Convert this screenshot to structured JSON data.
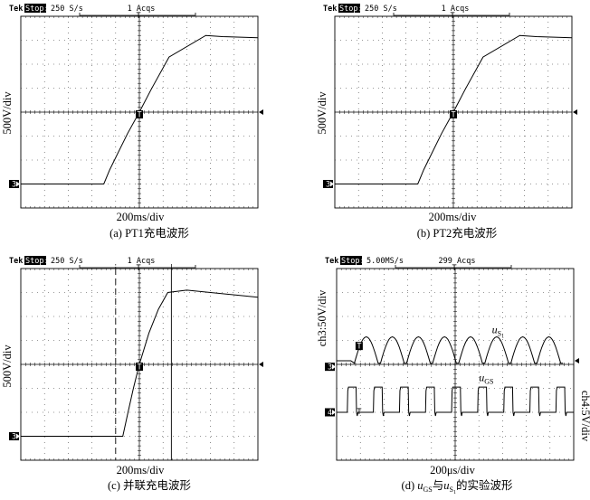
{
  "chart_data": [
    {
      "type": "line",
      "header": {
        "brand": "Tek",
        "status": "Stop:",
        "rate": "250 S/s",
        "acqs": "1 Acqs"
      },
      "xlabel": "200ms/div",
      "ylabel": "500V/div",
      "channel_marker": "3",
      "caption": "(a)  PT1充电波形",
      "x": [
        0,
        3.5,
        3.75,
        4.5,
        5,
        5.5,
        6.25,
        7.8,
        8.5,
        10
      ],
      "y": [
        -3,
        -3,
        -2.4,
        -0.9,
        0,
        0.95,
        2.3,
        3.2,
        3.15,
        3.1
      ],
      "series_labels": []
    },
    {
      "type": "line",
      "header": {
        "brand": "Tek",
        "status": "Stop:",
        "rate": "250 S/s",
        "acqs": "1 Acqs"
      },
      "xlabel": "200ms/div",
      "ylabel": "500V/div",
      "channel_marker": "3",
      "caption": "(b)  PT2充电波形",
      "x": [
        0,
        3.5,
        3.75,
        4.5,
        5,
        5.5,
        6.25,
        7.8,
        8.5,
        10
      ],
      "y": [
        -3,
        -3,
        -2.4,
        -0.9,
        0,
        0.95,
        2.3,
        3.2,
        3.15,
        3.1
      ],
      "series_labels": []
    },
    {
      "type": "line",
      "header": {
        "brand": "Tek",
        "status": "Stop:",
        "rate": "250 S/s",
        "acqs": "1 Acqs"
      },
      "xlabel": "200ms/div",
      "ylabel": "500V/div",
      "channel_marker": "3",
      "caption": "(c)  并联充电波形",
      "x": [
        0,
        4.3,
        4.5,
        4.75,
        5,
        5.4,
        5.8,
        6.2,
        7.0,
        10
      ],
      "y": [
        -3,
        -3,
        -2.1,
        -1.0,
        0,
        1.3,
        2.3,
        3.0,
        3.1,
        2.8
      ],
      "cursors_x": [
        4.0,
        6.35
      ],
      "series_labels": []
    },
    {
      "type": "line",
      "header": {
        "brand": "Tek",
        "status": "Stop:",
        "rate": "5.00MS/s",
        "acqs": "299 Acqs"
      },
      "xlabel": "200μs/div",
      "ylabel": "ch3:50V/div",
      "ylabel_right": "ch4:5V/div",
      "channel_markers": [
        "3",
        "4"
      ],
      "caption": "(d)  uGS与uS1的实验波形",
      "caption_parts": {
        "prefix": "(d)  ",
        "u1": "u",
        "sub1": "GS",
        "mid": "与",
        "u2": "u",
        "sub2": "S",
        "subsub2": "1",
        "suffix": "的实验波形"
      },
      "series_labels": [
        {
          "text": "u",
          "sub": "S",
          "subsub": "1"
        },
        {
          "text": "u",
          "sub": "GS",
          "subsub": ""
        }
      ],
      "periods": 8,
      "first_pulse_div": 0.85,
      "period_div": 1.1,
      "series": [
        {
          "name": "uS1",
          "baseline_div": 0.15,
          "peak_div": 1.15
        },
        {
          "name": "uGS",
          "baseline_div": -2.0,
          "high_div": -0.95
        }
      ]
    }
  ]
}
